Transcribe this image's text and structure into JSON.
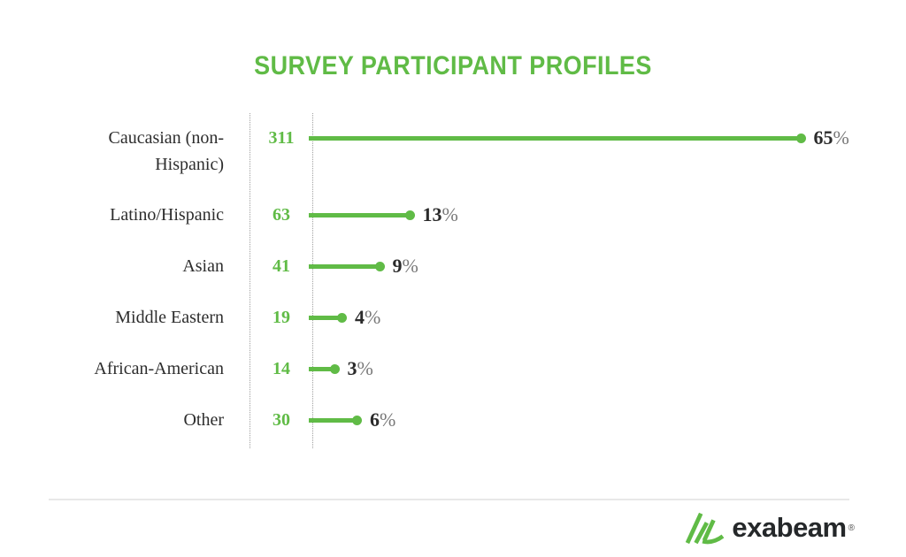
{
  "chart_data": {
    "type": "bar",
    "orientation": "horizontal",
    "title": "SURVEY PARTICIPANT PROFILES",
    "categories": [
      "Caucasian (non-Hispanic)",
      "Latino/Hispanic",
      "Asian",
      "Middle Eastern",
      "African-American",
      "Other"
    ],
    "series": [
      {
        "name": "respondent_count",
        "values": [
          311,
          63,
          41,
          19,
          14,
          30
        ]
      },
      {
        "name": "percent_of_total",
        "values": [
          65,
          13,
          9,
          4,
          3,
          6
        ]
      }
    ],
    "percent_sign": "%",
    "legend": "none",
    "grid": "two dotted vertical rules separating labels, counts and bars",
    "value_axis_range": [
      0,
      65
    ]
  },
  "colors": {
    "accent_green": "#60bb46",
    "category_text": "#2d2d2d",
    "percent_number": "#2b2b2b",
    "percent_sign": "#787878",
    "dotted_rule": "#a0a0a0",
    "divider": "#e8e8e8",
    "logo_text": "#25282a"
  },
  "footer": {
    "brand": "exabeam",
    "registered_mark": "®",
    "logo_icon": "exabeam-slashes-icon"
  }
}
